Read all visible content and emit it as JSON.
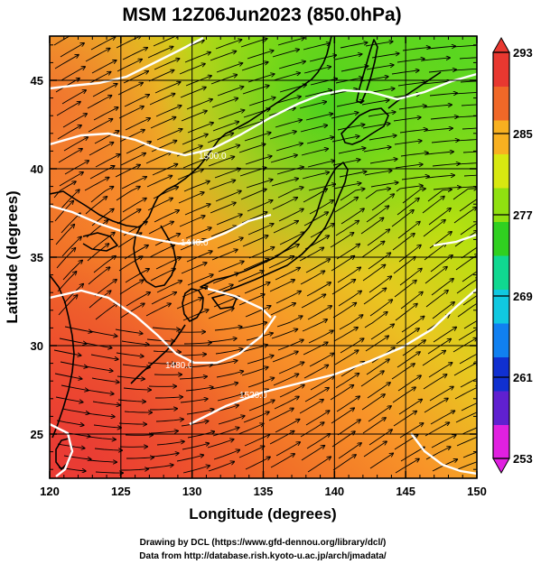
{
  "title": "MSM 12Z06Jun2023 (850.0hPa)",
  "x_axis": {
    "label": "Longitude (degrees)",
    "range": [
      120,
      150
    ],
    "ticks": [
      120,
      125,
      130,
      135,
      140,
      145,
      150
    ]
  },
  "y_axis": {
    "label": "Latitude  (degrees)",
    "range": [
      22.5,
      47.5
    ],
    "ticks": [
      25,
      30,
      35,
      40,
      45
    ]
  },
  "colorbar": {
    "min": 253,
    "max": 293,
    "ticks": [
      253,
      261,
      269,
      277,
      285,
      293
    ],
    "colors": [
      "#e020e0",
      "#6020d0",
      "#1030d0",
      "#1080f0",
      "#10c8e0",
      "#10d890",
      "#30d020",
      "#90e010",
      "#d8e810",
      "#f8b020",
      "#f06828",
      "#e83830"
    ]
  },
  "contours": {
    "color": "#ffffff",
    "labels": [
      "1500.0",
      "1440.0",
      "1480.0",
      "1520.0"
    ]
  },
  "credits": {
    "line1": "Drawing by DCL (https://www.gfd-dennou.org/library/dcl/)",
    "line2": "Data from http://database.rish.kyoto-u.ac.jp/arch/jmadata/"
  }
}
